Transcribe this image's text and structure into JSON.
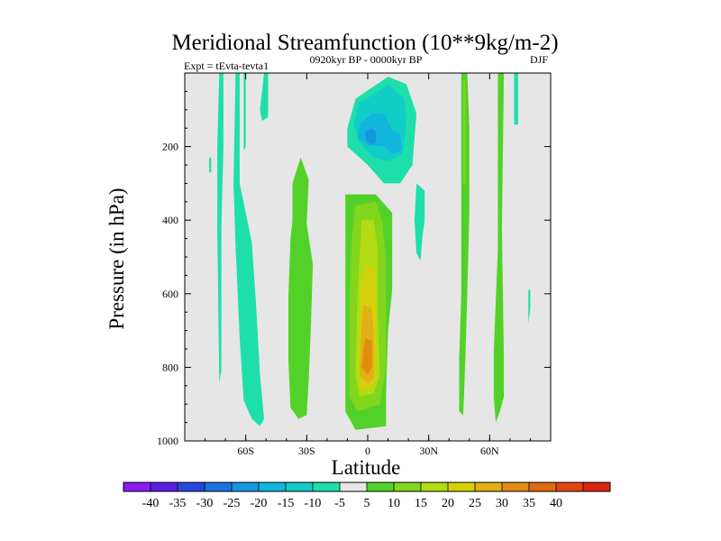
{
  "chart_data": {
    "type": "heatmap",
    "title": "Meridional Streamfunction (10**9kg/m-2)",
    "subtitle_left": "Expt = tEvta-tevta1",
    "subtitle_center": "0920kyr BP - 0000kyr BP",
    "subtitle_right": "DJF",
    "xlabel": "Latitude",
    "ylabel": "Pressure (in hPa)",
    "xlim": [
      -90,
      90
    ],
    "ylim": [
      0,
      1000
    ],
    "y_inverted": true,
    "x_ticks": [
      {
        "value": -60,
        "label": "60S"
      },
      {
        "value": -30,
        "label": "30S"
      },
      {
        "value": 0,
        "label": "0"
      },
      {
        "value": 30,
        "label": "30N"
      },
      {
        "value": 60,
        "label": "60N"
      }
    ],
    "y_ticks": [
      {
        "value": 200,
        "label": "200"
      },
      {
        "value": 400,
        "label": "400"
      },
      {
        "value": 600,
        "label": "600"
      },
      {
        "value": 800,
        "label": "800"
      },
      {
        "value": 1000,
        "label": "1000"
      }
    ],
    "background_color": "#e6e6e6",
    "colorbar": {
      "colors": [
        "#8a1cf0",
        "#5a1ee0",
        "#2848dc",
        "#1a72e2",
        "#1596e0",
        "#10b6dc",
        "#11cdc8",
        "#1edfaa",
        "#e6e6e6",
        "#52d228",
        "#82d61e",
        "#b4dc14",
        "#d6d00a",
        "#e0b014",
        "#e08c12",
        "#e06a10",
        "#e04610",
        "#dc2410"
      ],
      "labels": [
        "-40",
        "-35",
        "-30",
        "-25",
        "-20",
        "-15",
        "-10",
        "-5",
        "5",
        "10",
        "15",
        "20",
        "25",
        "30",
        "35",
        "40"
      ]
    },
    "regions": [
      {
        "label": "-5",
        "color": "#1edfaa",
        "points": [
          [
            -73,
            0
          ],
          [
            -71,
            0
          ],
          [
            -71,
            200
          ],
          [
            -72,
            420
          ],
          [
            -72,
            810
          ],
          [
            -73,
            840
          ],
          [
            -74,
            420
          ],
          [
            -74,
            200
          ]
        ]
      },
      {
        "label": "-5",
        "color": "#1edfaa",
        "points": [
          [
            -65,
            0
          ],
          [
            -63,
            0
          ],
          [
            -63,
            300
          ],
          [
            -60,
            380
          ],
          [
            -57,
            460
          ],
          [
            -55,
            620
          ],
          [
            -53,
            820
          ],
          [
            -51,
            940
          ],
          [
            -53,
            960
          ],
          [
            -57,
            940
          ],
          [
            -61,
            890
          ],
          [
            -63,
            720
          ],
          [
            -65,
            470
          ],
          [
            -66,
            300
          ]
        ]
      },
      {
        "label": "-5",
        "color": "#1edfaa",
        "points": [
          [
            -61,
            0
          ],
          [
            -60,
            0
          ],
          [
            -60,
            200
          ],
          [
            -61,
            210
          ]
        ]
      },
      {
        "label": "-5",
        "color": "#1edfaa",
        "points": [
          [
            -78,
            230
          ],
          [
            -77,
            230
          ],
          [
            -77,
            270
          ],
          [
            -78,
            270
          ]
        ]
      },
      {
        "label": "-5",
        "color": "#1edfaa",
        "points": [
          [
            -51,
            0
          ],
          [
            -49,
            0
          ],
          [
            -49,
            120
          ],
          [
            -52,
            130
          ],
          [
            -53,
            100
          ]
        ]
      },
      {
        "label": "-5",
        "color": "#1edfaa",
        "points": [
          [
            -6,
            70
          ],
          [
            2,
            40
          ],
          [
            10,
            10
          ],
          [
            19,
            30
          ],
          [
            24,
            110
          ],
          [
            22,
            250
          ],
          [
            16,
            300
          ],
          [
            8,
            300
          ],
          [
            0,
            250
          ],
          [
            -10,
            200
          ],
          [
            -10,
            150
          ]
        ]
      },
      {
        "label": "-10",
        "color": "#11cdc8",
        "points": [
          [
            -4,
            80
          ],
          [
            4,
            55
          ],
          [
            10,
            30
          ],
          [
            18,
            70
          ],
          [
            19,
            140
          ],
          [
            17,
            220
          ],
          [
            10,
            240
          ],
          [
            3,
            230
          ],
          [
            -4,
            190
          ],
          [
            -7,
            140
          ]
        ]
      },
      {
        "label": "-15",
        "color": "#10b6dc",
        "points": [
          [
            -4,
            140
          ],
          [
            2,
            110
          ],
          [
            8,
            110
          ],
          [
            12,
            155
          ],
          [
            16,
            165
          ],
          [
            17,
            210
          ],
          [
            12,
            220
          ],
          [
            8,
            200
          ],
          [
            0,
            195
          ],
          [
            -5,
            175
          ]
        ]
      },
      {
        "label": "-20",
        "color": "#1596e0",
        "points": [
          [
            -1,
            160
          ],
          [
            2,
            150
          ],
          [
            4,
            160
          ],
          [
            4,
            190
          ],
          [
            1,
            195
          ],
          [
            -1,
            180
          ]
        ]
      },
      {
        "label": "-5",
        "color": "#1edfaa",
        "points": [
          [
            24,
            300
          ],
          [
            28,
            320
          ],
          [
            28,
            400
          ],
          [
            27,
            440
          ],
          [
            26,
            510
          ],
          [
            24,
            490
          ],
          [
            23,
            400
          ]
        ]
      },
      {
        "label": "-5",
        "color": "#1edfaa",
        "points": [
          [
            79,
            590
          ],
          [
            80,
            590
          ],
          [
            80,
            640
          ],
          [
            79,
            680
          ]
        ]
      },
      {
        "label": "-5",
        "color": "#1edfaa",
        "points": [
          [
            72,
            0
          ],
          [
            74,
            0
          ],
          [
            74,
            140
          ],
          [
            72,
            140
          ]
        ]
      },
      {
        "label": "5",
        "color": "#52d228",
        "points": [
          [
            -37,
            300
          ],
          [
            -33,
            230
          ],
          [
            -29,
            290
          ],
          [
            -30,
            410
          ],
          [
            -27,
            520
          ],
          [
            -28,
            700
          ],
          [
            -29,
            830
          ],
          [
            -30,
            930
          ],
          [
            -34,
            940
          ],
          [
            -38,
            910
          ],
          [
            -39,
            780
          ],
          [
            -39,
            610
          ],
          [
            -38,
            450
          ],
          [
            -37,
            400
          ]
        ]
      },
      {
        "label": "5",
        "color": "#52d228",
        "points": [
          [
            -11,
            330
          ],
          [
            4,
            330
          ],
          [
            12,
            380
          ],
          [
            12,
            590
          ],
          [
            10,
            700
          ],
          [
            9,
            870
          ],
          [
            9,
            960
          ],
          [
            -6,
            970
          ],
          [
            -11,
            920
          ],
          [
            -11,
            640
          ],
          [
            -11,
            480
          ]
        ]
      },
      {
        "label": "5",
        "color": "#52d228",
        "points": [
          [
            46,
            0
          ],
          [
            49,
            0
          ],
          [
            50,
            150
          ],
          [
            50,
            380
          ],
          [
            49,
            600
          ],
          [
            48,
            780
          ],
          [
            47,
            930
          ],
          [
            45,
            920
          ],
          [
            45,
            780
          ],
          [
            46,
            600
          ],
          [
            46,
            380
          ],
          [
            46,
            150
          ]
        ]
      },
      {
        "label": "5",
        "color": "#52d228",
        "points": [
          [
            64,
            0
          ],
          [
            67,
            0
          ],
          [
            66,
            420
          ],
          [
            67,
            780
          ],
          [
            67,
            880
          ],
          [
            65,
            920
          ],
          [
            63,
            950
          ],
          [
            62,
            880
          ],
          [
            62,
            760
          ],
          [
            64,
            480
          ]
        ]
      },
      {
        "label": "10",
        "color": "#82d61e",
        "points": [
          [
            -6,
            360
          ],
          [
            4,
            350
          ],
          [
            7,
            400
          ],
          [
            9,
            500
          ],
          [
            9,
            800
          ],
          [
            6,
            900
          ],
          [
            -5,
            920
          ],
          [
            -9,
            880
          ],
          [
            -9,
            640
          ],
          [
            -8,
            450
          ]
        ]
      },
      {
        "label": "10",
        "color": "#82d61e",
        "points": [
          [
            47,
            20
          ],
          [
            48,
            20
          ],
          [
            48,
            300
          ],
          [
            47,
            300
          ]
        ]
      },
      {
        "label": "15",
        "color": "#b4dc14",
        "points": [
          [
            -3,
            400
          ],
          [
            3,
            400
          ],
          [
            5,
            490
          ],
          [
            5,
            660
          ],
          [
            6,
            820
          ],
          [
            3,
            870
          ],
          [
            -4,
            880
          ],
          [
            -6,
            820
          ],
          [
            -5,
            600
          ],
          [
            -4,
            500
          ]
        ]
      },
      {
        "label": "20",
        "color": "#d6d00a",
        "points": [
          [
            -1,
            520
          ],
          [
            3,
            530
          ],
          [
            4,
            650
          ],
          [
            4,
            830
          ],
          [
            1,
            860
          ],
          [
            -4,
            860
          ],
          [
            -4,
            680
          ],
          [
            -3,
            580
          ]
        ]
      },
      {
        "label": "25",
        "color": "#e0b014",
        "points": [
          [
            -2,
            630
          ],
          [
            2,
            640
          ],
          [
            3,
            720
          ],
          [
            3,
            830
          ],
          [
            0,
            845
          ],
          [
            -4,
            820
          ],
          [
            -3,
            680
          ]
        ]
      },
      {
        "label": "30",
        "color": "#e08c12",
        "points": [
          [
            -1,
            720
          ],
          [
            2,
            730
          ],
          [
            2,
            800
          ],
          [
            0,
            820
          ],
          [
            -3,
            800
          ],
          [
            -2,
            750
          ]
        ]
      }
    ]
  }
}
